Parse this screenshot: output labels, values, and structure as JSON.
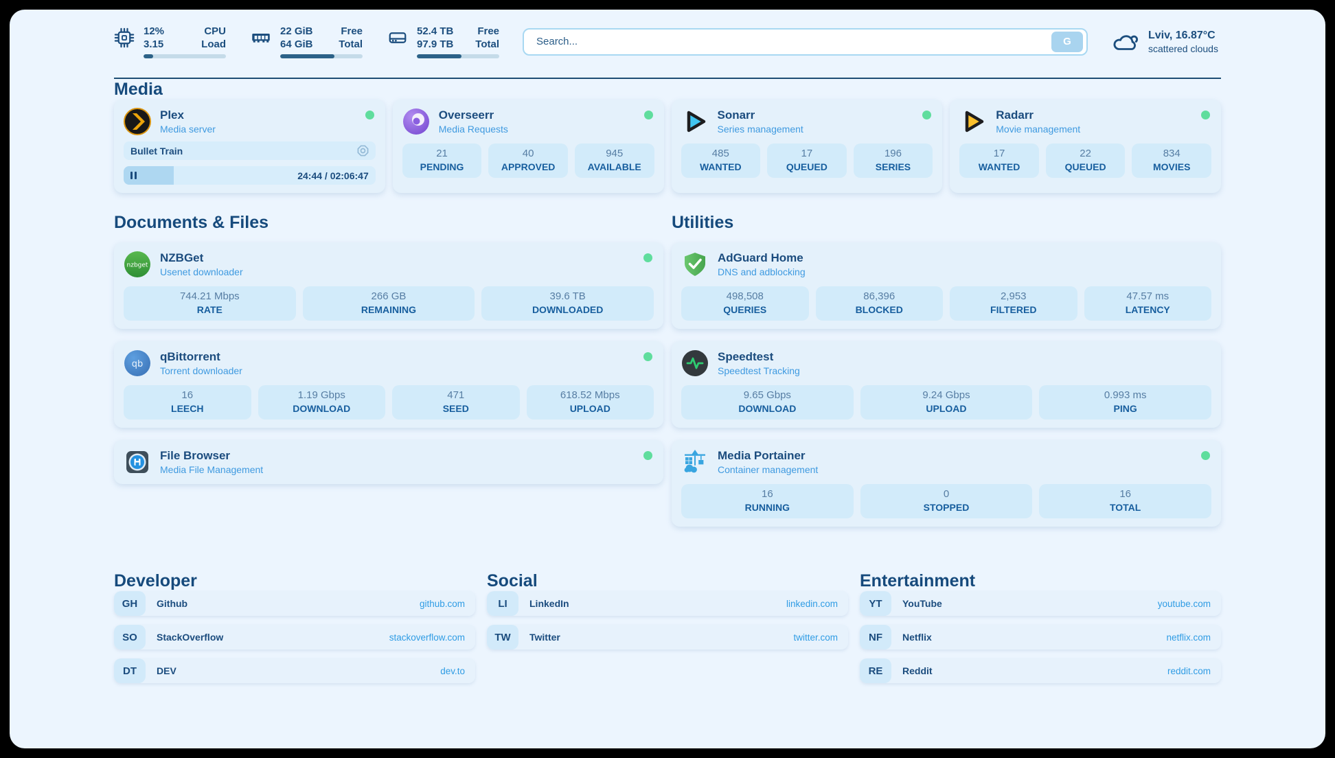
{
  "colors": {
    "frame": "#000000",
    "page_bg": "#ecf5fe",
    "card_bg": "#e4f1fb",
    "tile_bg": "#d2ebfa",
    "navy": "#1c4e7e",
    "subtitle_blue": "#3f9ae0",
    "link_blue": "#2f9ce4",
    "status_green": "#5fdd9d",
    "progress_fill": "#2c6288",
    "progress_track": "#c5dbe9"
  },
  "topbar": {
    "resources": [
      {
        "icon": "cpu-icon",
        "rows": [
          {
            "value": "12%",
            "label": "CPU"
          },
          {
            "value": "3.15",
            "label": "Load"
          }
        ],
        "progress": 12
      },
      {
        "icon": "memory-icon",
        "rows": [
          {
            "value": "22 GiB",
            "label": "Free"
          },
          {
            "value": "64 GiB",
            "label": "Total"
          }
        ],
        "progress": 66
      },
      {
        "icon": "disk-icon",
        "rows": [
          {
            "value": "52.4 TB",
            "label": "Free"
          },
          {
            "value": "97.9 TB",
            "label": "Total"
          }
        ],
        "progress": 54
      }
    ],
    "search": {
      "placeholder": "Search...",
      "button_label": "G"
    },
    "weather": {
      "icon": "cloud-icon",
      "location": "Lviv, 16.87°C",
      "condition": "scattered clouds"
    }
  },
  "sections": {
    "media": {
      "header": "Media"
    },
    "documents": {
      "header": "Documents & Files"
    },
    "utilities": {
      "header": "Utilities"
    }
  },
  "services": {
    "plex": {
      "icon": "plex-icon",
      "name": "Plex",
      "desc": "Media server",
      "now_playing": "Bullet Train",
      "time": "24:44 / 02:06:47",
      "progress": 20
    },
    "overseerr": {
      "icon": "overseerr-icon",
      "name": "Overseerr",
      "desc": "Media Requests",
      "stats": [
        {
          "v": "21",
          "l": "PENDING"
        },
        {
          "v": "40",
          "l": "APPROVED"
        },
        {
          "v": "945",
          "l": "AVAILABLE"
        }
      ]
    },
    "sonarr": {
      "icon": "sonarr-icon",
      "name": "Sonarr",
      "desc": "Series management",
      "stats": [
        {
          "v": "485",
          "l": "WANTED"
        },
        {
          "v": "17",
          "l": "QUEUED"
        },
        {
          "v": "196",
          "l": "SERIES"
        }
      ]
    },
    "radarr": {
      "icon": "radarr-icon",
      "name": "Radarr",
      "desc": "Movie management",
      "stats": [
        {
          "v": "17",
          "l": "WANTED"
        },
        {
          "v": "22",
          "l": "QUEUED"
        },
        {
          "v": "834",
          "l": "MOVIES"
        }
      ]
    },
    "nzbget": {
      "icon": "nzbget-icon",
      "icon_text": "nzbget",
      "name": "NZBGet",
      "desc": "Usenet downloader",
      "stats": [
        {
          "v": "744.21 Mbps",
          "l": "RATE"
        },
        {
          "v": "266 GB",
          "l": "REMAINING"
        },
        {
          "v": "39.6 TB",
          "l": "DOWNLOADED"
        }
      ]
    },
    "adguard": {
      "icon": "adguard-icon",
      "name": "AdGuard Home",
      "desc": "DNS and adblocking",
      "stats": [
        {
          "v": "498,508",
          "l": "QUERIES"
        },
        {
          "v": "86,396",
          "l": "BLOCKED"
        },
        {
          "v": "2,953",
          "l": "FILTERED"
        },
        {
          "v": "47.57 ms",
          "l": "LATENCY"
        }
      ]
    },
    "qbittorrent": {
      "icon": "qbittorrent-icon",
      "icon_text": "qb",
      "name": "qBittorrent",
      "desc": "Torrent downloader",
      "stats": [
        {
          "v": "16",
          "l": "LEECH"
        },
        {
          "v": "1.19 Gbps",
          "l": "DOWNLOAD"
        },
        {
          "v": "471",
          "l": "SEED"
        },
        {
          "v": "618.52 Mbps",
          "l": "UPLOAD"
        }
      ]
    },
    "speedtest": {
      "icon": "speedtest-icon",
      "name": "Speedtest",
      "desc": "Speedtest Tracking",
      "stats": [
        {
          "v": "9.65 Gbps",
          "l": "DOWNLOAD"
        },
        {
          "v": "9.24 Gbps",
          "l": "UPLOAD"
        },
        {
          "v": "0.993 ms",
          "l": "PING"
        }
      ]
    },
    "filebrowser": {
      "icon": "filebrowser-icon",
      "name": "File Browser",
      "desc": "Media File Management"
    },
    "portainer": {
      "icon": "portainer-icon",
      "name": "Media Portainer",
      "desc": "Container management",
      "stats": [
        {
          "v": "16",
          "l": "RUNNING"
        },
        {
          "v": "0",
          "l": "STOPPED"
        },
        {
          "v": "16",
          "l": "TOTAL"
        }
      ]
    }
  },
  "bookmarks": [
    {
      "header": "Developer",
      "links": [
        {
          "abbr": "GH",
          "name": "Github",
          "url": "github.com"
        },
        {
          "abbr": "SO",
          "name": "StackOverflow",
          "url": "stackoverflow.com"
        },
        {
          "abbr": "DT",
          "name": "DEV",
          "url": "dev.to"
        }
      ]
    },
    {
      "header": "Social",
      "links": [
        {
          "abbr": "LI",
          "name": "LinkedIn",
          "url": "linkedin.com"
        },
        {
          "abbr": "TW",
          "name": "Twitter",
          "url": "twitter.com"
        }
      ]
    },
    {
      "header": "Entertainment",
      "links": [
        {
          "abbr": "YT",
          "name": "YouTube",
          "url": "youtube.com"
        },
        {
          "abbr": "NF",
          "name": "Netflix",
          "url": "netflix.com"
        },
        {
          "abbr": "RE",
          "name": "Reddit",
          "url": "reddit.com"
        }
      ]
    }
  ]
}
